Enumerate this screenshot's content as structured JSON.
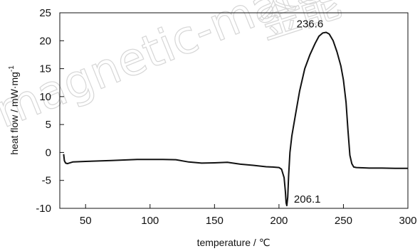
{
  "watermark": {
    "latin": "magnetic-materials",
    "cjk": "金能"
  },
  "chart_data": {
    "type": "line",
    "title": "",
    "xlabel": "temperature / ℃",
    "ylabel": "heat flow / mW·mg",
    "ylabel_superscript": "-1",
    "xlim": [
      30,
      300
    ],
    "ylim": [
      -10,
      25
    ],
    "xticks": [
      50,
      100,
      150,
      200,
      250,
      300
    ],
    "yticks": [
      -10,
      -5,
      0,
      5,
      10,
      15,
      20,
      25
    ],
    "grid": false,
    "legend": "none",
    "line_color": "#111111",
    "series": [
      {
        "x": [
          33,
          33.6,
          34.5,
          36,
          40,
          50,
          70,
          90,
          110,
          120,
          130,
          140,
          150,
          160,
          170,
          180,
          190,
          195,
          200,
          202,
          204,
          205,
          205.5,
          206.1,
          206.8,
          207.5,
          208.5,
          210,
          213,
          216,
          220,
          224,
          228,
          231,
          234,
          236.6,
          239,
          242,
          245,
          248,
          250,
          252,
          253.5,
          255,
          256.5,
          258,
          260,
          265,
          270,
          280,
          290,
          300
        ],
        "y": [
          -0.3,
          -1.5,
          -1.9,
          -2.0,
          -1.7,
          -1.6,
          -1.45,
          -1.25,
          -1.25,
          -1.3,
          -1.7,
          -1.9,
          -1.85,
          -1.75,
          -2.1,
          -2.3,
          -2.55,
          -2.6,
          -2.7,
          -3.0,
          -4.5,
          -7.0,
          -9.0,
          -9.5,
          -8.0,
          -4.0,
          0.0,
          3.0,
          7.0,
          11.0,
          15.0,
          17.5,
          19.5,
          20.8,
          21.4,
          21.5,
          21.2,
          20.0,
          18.0,
          15.5,
          13.0,
          9.0,
          4.0,
          -0.5,
          -2.0,
          -2.6,
          -2.7,
          -2.75,
          -2.8,
          -2.8,
          -2.85,
          -2.85
        ]
      }
    ],
    "annotations": [
      {
        "text": "236.6",
        "x": 236.6,
        "y": 21.5
      },
      {
        "text": "206.1",
        "x": 206.1,
        "y": -9.5
      }
    ]
  }
}
